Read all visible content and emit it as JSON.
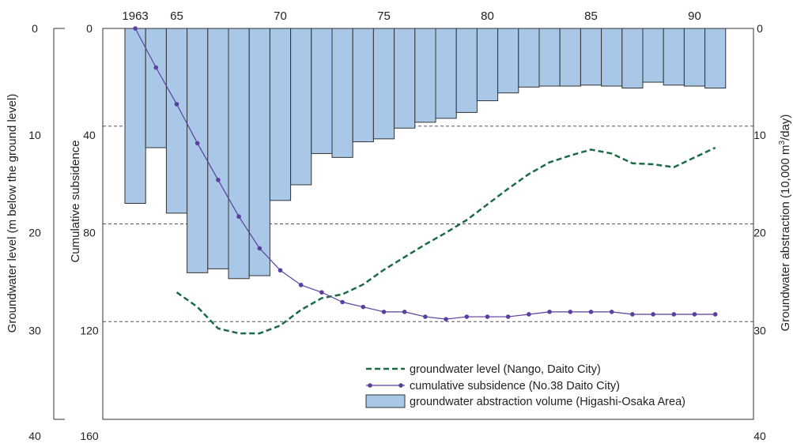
{
  "chart_data": {
    "type": "bar",
    "x_tick_labels": [
      {
        "year": 1963,
        "label": "1963"
      },
      {
        "year": 1965,
        "label": "65"
      },
      {
        "year": 1970,
        "label": "70"
      },
      {
        "year": 1975,
        "label": "75"
      },
      {
        "year": 1980,
        "label": "80"
      },
      {
        "year": 1985,
        "label": "85"
      },
      {
        "year": 1990,
        "label": "90"
      }
    ],
    "axes": {
      "groundwater_level": {
        "label": "Groundwater level (m below the ground level)",
        "range": [
          0,
          40
        ],
        "ticks": [
          "0",
          "10",
          "20",
          "30",
          "40"
        ],
        "inverted": true
      },
      "cumulative_subsidence": {
        "label": "Cumulative subsidence",
        "range": [
          0,
          160
        ],
        "ticks": [
          "0",
          "40",
          "80",
          "120",
          "160"
        ],
        "inverted": true
      },
      "groundwater_abstraction": {
        "label_prefix": "Groundwater abstraction (10,000 m",
        "label_sup": "3",
        "label_suffix": "/day)",
        "range": [
          0,
          40
        ],
        "ticks": [
          "0",
          "10",
          "20",
          "30",
          "40"
        ],
        "inverted": true
      }
    },
    "grid": {
      "horizontal_dashed": true,
      "lines_at_groundwater_level": [
        10,
        20,
        30
      ]
    },
    "legend": {
      "placement": "bottom-right",
      "entries": [
        "groundwater level (Nango, Daito City)",
        "cumulative subsidence (No.38 Daito City)",
        "groundwater abstraction volume (Higashi-Osaka Area)"
      ]
    },
    "series": [
      {
        "kind": "bar",
        "axis": "groundwater_abstraction",
        "color": "#a9c8e8",
        "years": [
          1963,
          1964,
          1965,
          1966,
          1967,
          1968,
          1969,
          1970,
          1971,
          1972,
          1973,
          1974,
          1975,
          1976,
          1977,
          1978,
          1979,
          1980,
          1981,
          1982,
          1983,
          1984,
          1985,
          1986,
          1987,
          1988,
          1989,
          1990,
          1991
        ],
        "values": [
          17.9,
          12.2,
          18.9,
          25.0,
          24.6,
          25.6,
          25.3,
          17.6,
          16.0,
          12.8,
          13.2,
          11.6,
          11.3,
          10.2,
          9.6,
          9.2,
          8.6,
          7.4,
          6.6,
          6.0,
          5.9,
          5.9,
          5.8,
          5.9,
          6.1,
          5.5,
          5.8,
          5.9,
          6.1
        ]
      },
      {
        "kind": "line",
        "axis": "cumulative_subsidence",
        "color": "#5a3fa0",
        "markers": true,
        "years": [
          1963,
          1964,
          1965,
          1966,
          1967,
          1968,
          1969,
          1970,
          1971,
          1972,
          1973,
          1974,
          1975,
          1976,
          1977,
          1978,
          1979,
          1980,
          1981,
          1982,
          1983,
          1984,
          1985,
          1986,
          1987,
          1988,
          1989,
          1990,
          1991
        ],
        "values": [
          0,
          16,
          31,
          47,
          62,
          77,
          90,
          99,
          105,
          108,
          112,
          114,
          116,
          116,
          118,
          119,
          118,
          118,
          118,
          117,
          116,
          116,
          116,
          116,
          117,
          117,
          117,
          117,
          117
        ]
      },
      {
        "kind": "dashed-line",
        "axis": "groundwater_level",
        "color": "#1a6b45",
        "years": [
          1965,
          1966,
          1967,
          1968,
          1969,
          1970,
          1971,
          1972,
          1973,
          1974,
          1975,
          1976,
          1977,
          1978,
          1979,
          1980,
          1981,
          1982,
          1983,
          1984,
          1985,
          1986,
          1987,
          1988,
          1989,
          1990,
          1991
        ],
        "values": [
          27.0,
          28.5,
          30.7,
          31.2,
          31.2,
          30.4,
          28.8,
          27.6,
          27.2,
          26.2,
          24.7,
          23.4,
          22.1,
          20.9,
          19.6,
          18.0,
          16.4,
          14.9,
          13.7,
          13.0,
          12.4,
          12.8,
          13.8,
          13.9,
          14.2,
          13.2,
          12.2
        ]
      }
    ]
  }
}
